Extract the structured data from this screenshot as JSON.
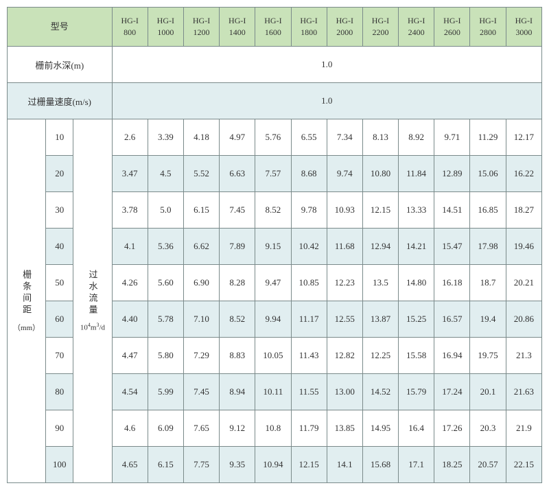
{
  "header": {
    "model_label": "型号",
    "models": [
      "HG-I 800",
      "HG-I 1000",
      "HG-I 1200",
      "HG-I 1400",
      "HG-I 1600",
      "HG-I 1800",
      "HG-I 2000",
      "HG-I 2200",
      "HG-I 2400",
      "HG-I 2600",
      "HG-I 2800",
      "HG-I 3000"
    ]
  },
  "param_rows": [
    {
      "label": "栅前水深(m)",
      "value": "1.0",
      "bg": "white"
    },
    {
      "label": "过栅量速度(m/s)",
      "value": "1.0",
      "bg": "blue"
    }
  ],
  "side": {
    "spacing_label": "栅条间距",
    "spacing_unit": "（mm）",
    "flow_label": "过水流量",
    "flow_unit_html": "10⁴m³/d"
  },
  "spacings": [
    "10",
    "20",
    "30",
    "40",
    "50",
    "60",
    "70",
    "80",
    "90",
    "100"
  ],
  "rows": [
    {
      "bg": "white",
      "v": [
        "2.6",
        "3.39",
        "4.18",
        "4.97",
        "5.76",
        "6.55",
        "7.34",
        "8.13",
        "8.92",
        "9.71",
        "11.29",
        "12.17"
      ]
    },
    {
      "bg": "blue",
      "v": [
        "3.47",
        "4.5",
        "5.52",
        "6.63",
        "7.57",
        "8.68",
        "9.74",
        "10.80",
        "11.84",
        "12.89",
        "15.06",
        "16.22"
      ]
    },
    {
      "bg": "white",
      "v": [
        "3.78",
        "5.0",
        "6.15",
        "7.45",
        "8.52",
        "9.78",
        "10.93",
        "12.15",
        "13.33",
        "14.51",
        "16.85",
        "18.27"
      ]
    },
    {
      "bg": "blue",
      "v": [
        "4.1",
        "5.36",
        "6.62",
        "7.89",
        "9.15",
        "10.42",
        "11.68",
        "12.94",
        "14.21",
        "15.47",
        "17.98",
        "19.46"
      ]
    },
    {
      "bg": "white",
      "v": [
        "4.26",
        "5.60",
        "6.90",
        "8.28",
        "9.47",
        "10.85",
        "12.23",
        "13.5",
        "14.80",
        "16.18",
        "18.7",
        "20.21"
      ]
    },
    {
      "bg": "blue",
      "v": [
        "4.40",
        "5.78",
        "7.10",
        "8.52",
        "9.94",
        "11.17",
        "12.55",
        "13.87",
        "15.25",
        "16.57",
        "19.4",
        "20.86"
      ]
    },
    {
      "bg": "white",
      "v": [
        "4.47",
        "5.80",
        "7.29",
        "8.83",
        "10.05",
        "11.43",
        "12.82",
        "12.25",
        "15.58",
        "16.94",
        "19.75",
        "21.3"
      ]
    },
    {
      "bg": "blue",
      "v": [
        "4.54",
        "5.99",
        "7.45",
        "8.94",
        "10.11",
        "11.55",
        "13.00",
        "14.52",
        "15.79",
        "17.24",
        "20.1",
        "21.63"
      ]
    },
    {
      "bg": "white",
      "v": [
        "4.6",
        "6.09",
        "7.65",
        "9.12",
        "10.8",
        "11.79",
        "13.85",
        "14.95",
        "16.4",
        "17.26",
        "20.3",
        "21.9"
      ]
    },
    {
      "bg": "blue",
      "v": [
        "4.65",
        "6.15",
        "7.75",
        "9.35",
        "10.94",
        "12.15",
        "14.1",
        "15.68",
        "17.1",
        "18.25",
        "20.57",
        "22.15"
      ]
    }
  ],
  "colors": {
    "header_bg": "#c9e2b9",
    "blue_bg": "#e1eef0",
    "white_bg": "#ffffff",
    "border": "#7a8a8a",
    "text": "#333333"
  }
}
